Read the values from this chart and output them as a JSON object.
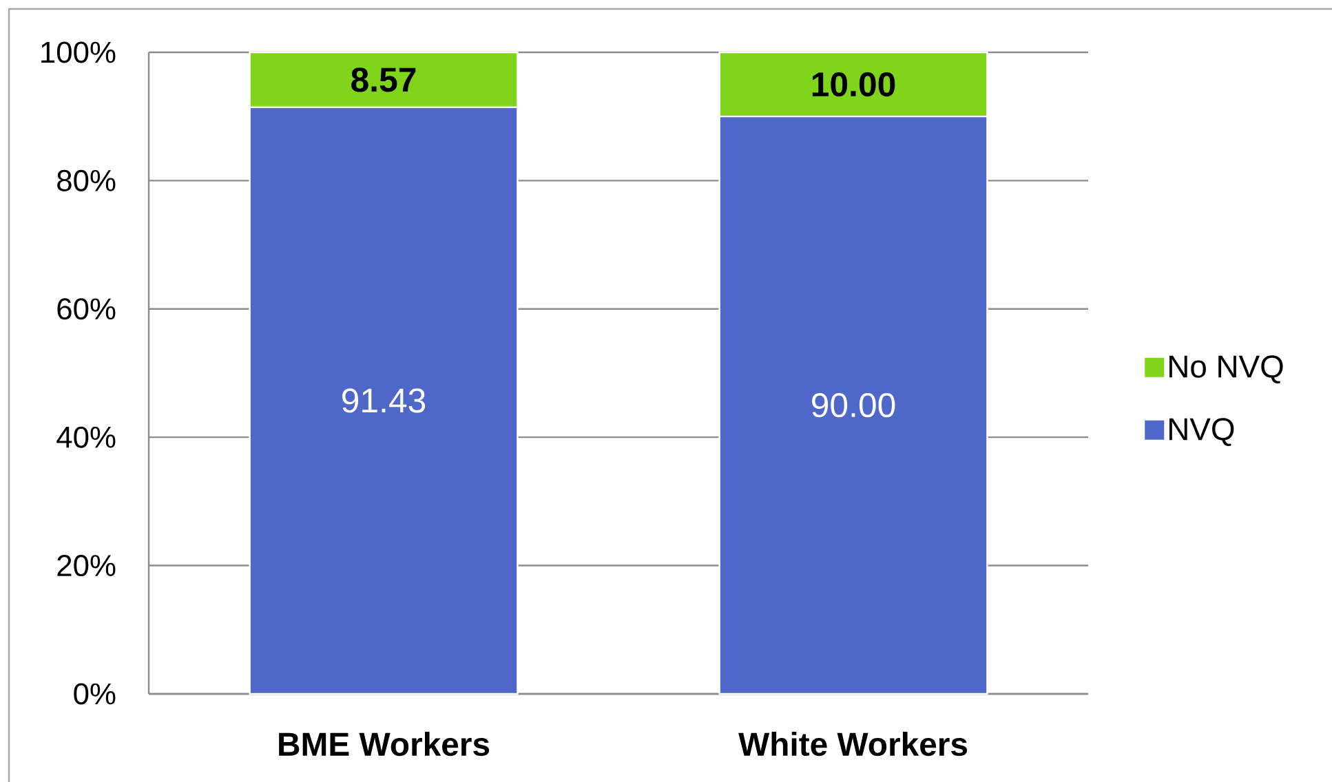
{
  "chart_data": {
    "type": "bar",
    "stacked": true,
    "categories": [
      "BME Workers",
      "White Workers"
    ],
    "series": [
      {
        "name": "NVQ",
        "color": "#4f67c8",
        "values": [
          91.43,
          90.0
        ],
        "value_labels": [
          "91.43",
          "90.00"
        ]
      },
      {
        "name": "No NVQ",
        "color": "#80d41b",
        "values": [
          8.57,
          10.0
        ],
        "value_labels": [
          "8.57",
          "10.00"
        ]
      }
    ],
    "ylim": [
      0,
      100
    ],
    "yticks": [
      {
        "value": 0,
        "label": "0%"
      },
      {
        "value": 20,
        "label": "20%"
      },
      {
        "value": 40,
        "label": "40%"
      },
      {
        "value": 60,
        "label": "60%"
      },
      {
        "value": 80,
        "label": "80%"
      },
      {
        "value": 100,
        "label": "100%"
      }
    ],
    "grid": "y",
    "legend": "right"
  }
}
